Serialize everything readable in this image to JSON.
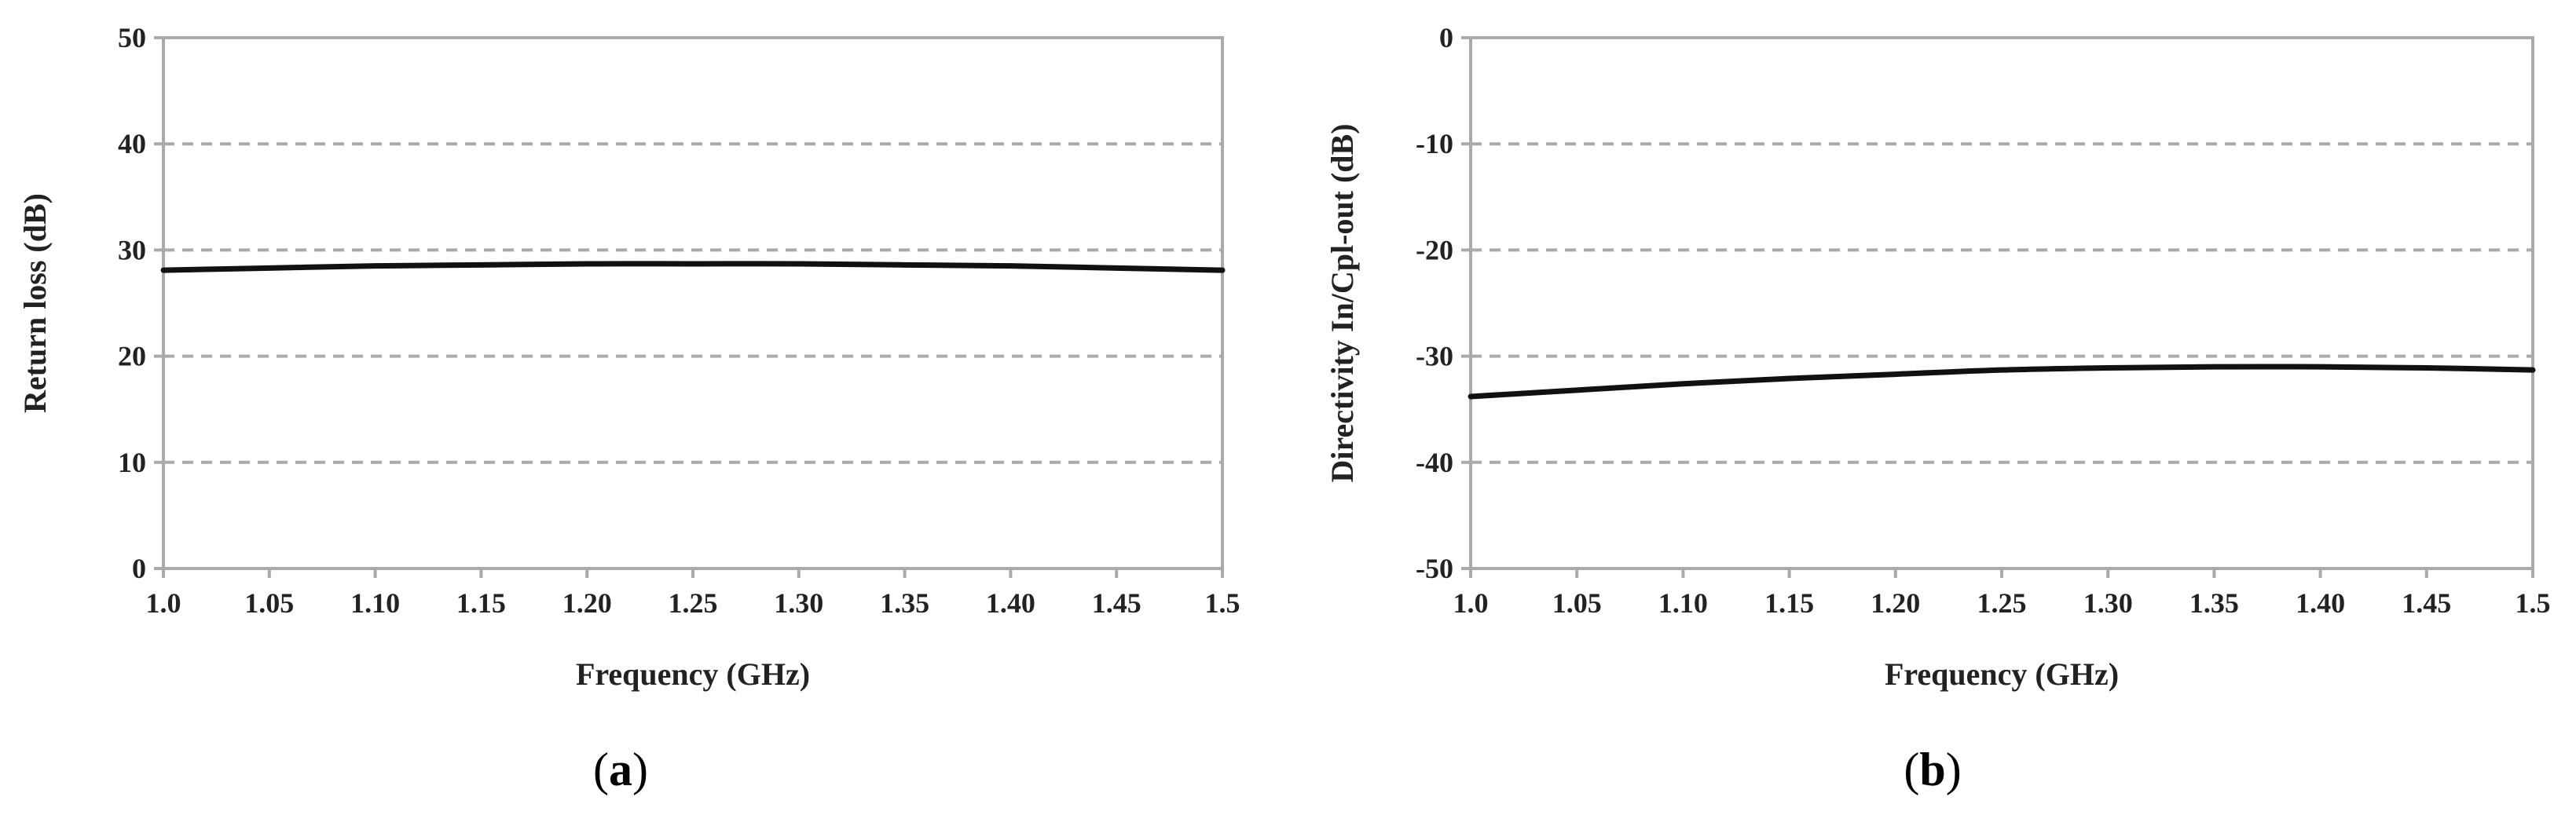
{
  "chart_data": [
    {
      "type": "line",
      "caption_letter": "a",
      "xlabel": "Frequency (GHz)",
      "ylabel": "Return loss (dB)",
      "xlim": [
        1.0,
        1.5
      ],
      "ylim": [
        0,
        50
      ],
      "x_ticks": [
        "1.0",
        "1.05",
        "1.10",
        "1.15",
        "1.20",
        "1.25",
        "1.30",
        "1.35",
        "1.40",
        "1.45",
        "1.5"
      ],
      "y_ticks": [
        "0",
        "10",
        "20",
        "30",
        "40",
        "50"
      ],
      "grid": "horizontal-dashed",
      "series": [
        {
          "x": [
            1.0,
            1.05,
            1.1,
            1.15,
            1.2,
            1.25,
            1.3,
            1.35,
            1.4,
            1.45,
            1.5
          ],
          "values": [
            28.1,
            28.3,
            28.5,
            28.6,
            28.7,
            28.7,
            28.7,
            28.6,
            28.5,
            28.3,
            28.1
          ]
        }
      ]
    },
    {
      "type": "line",
      "caption_letter": "b",
      "xlabel": "Frequency (GHz)",
      "ylabel": "Directivity In/Cpl-out (dB)",
      "xlim": [
        1.0,
        1.5
      ],
      "ylim": [
        -50,
        0
      ],
      "x_ticks": [
        "1.0",
        "1.05",
        "1.10",
        "1.15",
        "1.20",
        "1.25",
        "1.30",
        "1.35",
        "1.40",
        "1.45",
        "1.5"
      ],
      "y_ticks": [
        "-50",
        "-40",
        "-30",
        "-20",
        "-10",
        "0"
      ],
      "grid": "horizontal-dashed",
      "series": [
        {
          "x": [
            1.0,
            1.05,
            1.1,
            1.15,
            1.2,
            1.25,
            1.3,
            1.35,
            1.4,
            1.45,
            1.5
          ],
          "values": [
            -33.8,
            -33.2,
            -32.6,
            -32.1,
            -31.7,
            -31.3,
            -31.1,
            -31.0,
            -31.0,
            -31.1,
            -31.3
          ]
        }
      ]
    }
  ],
  "style": {
    "line_color": "#111111",
    "grid_color": "#aaaaaa",
    "frame_color": "#aaaaaa"
  }
}
